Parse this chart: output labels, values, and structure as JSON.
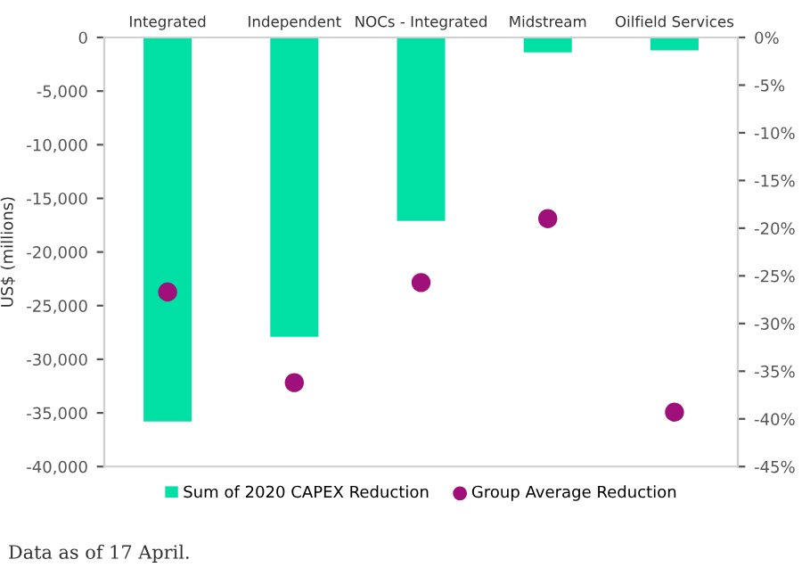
{
  "chart_data": {
    "type": "bar",
    "categories": [
      "Integrated",
      "Independent",
      "NOCs - Integrated",
      "Midstream",
      "Oilfield Services"
    ],
    "ylabel": "US$ (millions)",
    "series": [
      {
        "name": "Sum of 2020 CAPEX Reduction",
        "color": "#00e0a4",
        "values": [
          -35800,
          -27900,
          -17100,
          -1400,
          -1200
        ]
      },
      {
        "name": "Group Average Reduction",
        "type": "scatter",
        "axis": "y2",
        "color": "#a0107a",
        "values": [
          -26.7,
          -36.2,
          -25.7,
          -19.0,
          -39.3
        ]
      }
    ],
    "ylim": [
      -40000,
      0
    ],
    "yticks": [
      {
        "value": 0,
        "label": "0"
      },
      {
        "value": -5000,
        "label": "-5,000"
      },
      {
        "value": -10000,
        "label": "-10,000"
      },
      {
        "value": -15000,
        "label": "-15,000"
      },
      {
        "value": -20000,
        "label": "-20,000"
      },
      {
        "value": -25000,
        "label": "-25,000"
      },
      {
        "value": -30000,
        "label": "-30,000"
      },
      {
        "value": -35000,
        "label": "-35,000"
      },
      {
        "value": -40000,
        "label": "-40,000"
      }
    ],
    "y2lim": [
      -45,
      0
    ],
    "y2ticks": [
      {
        "value": 0,
        "label": "0%"
      },
      {
        "value": -5,
        "label": "-5%"
      },
      {
        "value": -10,
        "label": "-10%"
      },
      {
        "value": -15,
        "label": "-15%"
      },
      {
        "value": -20,
        "label": "-20%"
      },
      {
        "value": -25,
        "label": "-25%"
      },
      {
        "value": -30,
        "label": "-30%"
      },
      {
        "value": -35,
        "label": "-35%"
      },
      {
        "value": -40,
        "label": "-40%"
      },
      {
        "value": -45,
        "label": "-45%"
      }
    ],
    "marker": "circle",
    "grid": false,
    "legend": "bottom",
    "annotations": [
      "Data as of 17 April."
    ]
  }
}
